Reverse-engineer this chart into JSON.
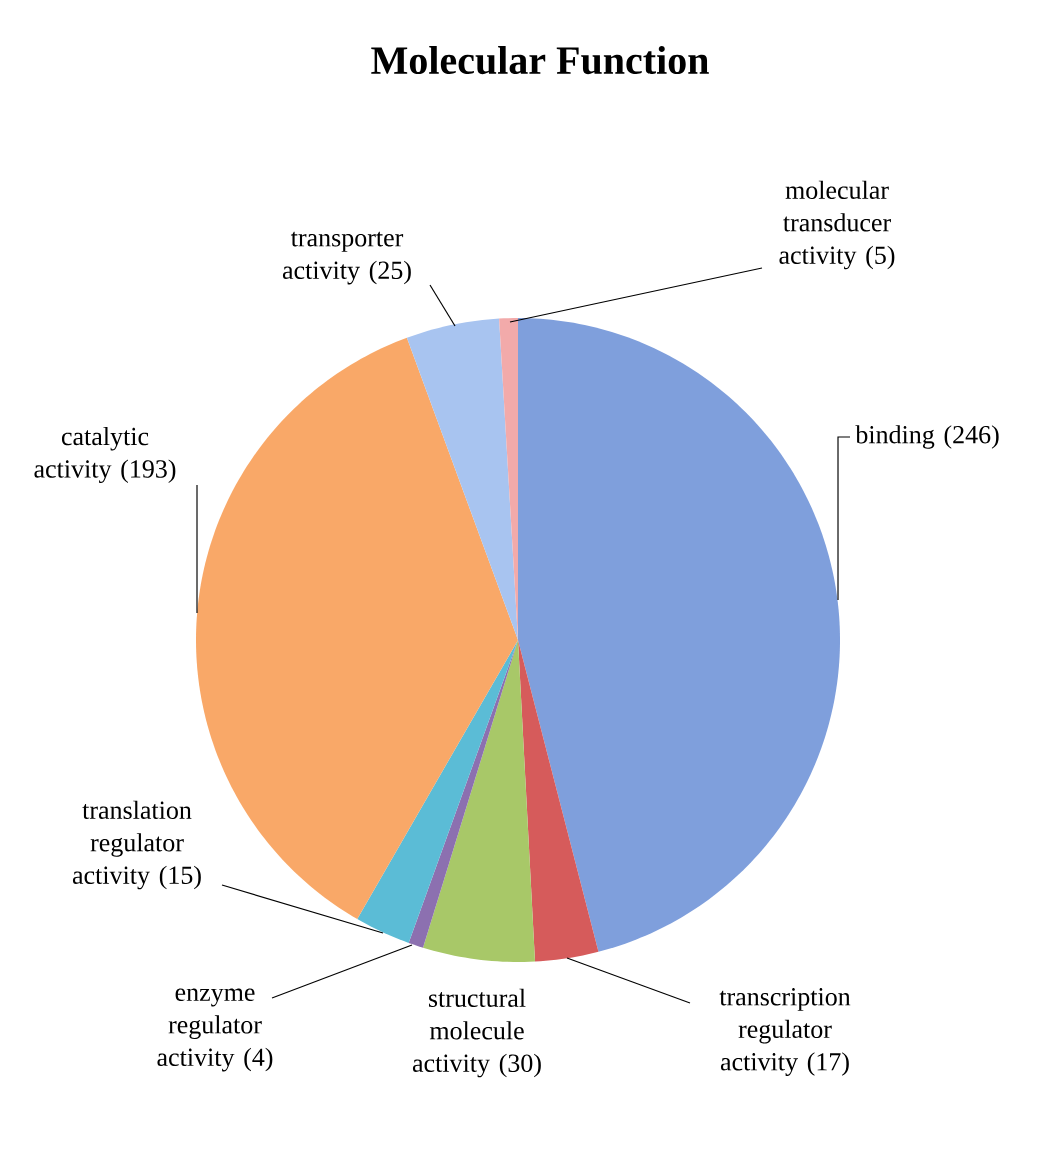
{
  "chart_data": {
    "type": "pie",
    "title": "Molecular Function",
    "categories": [
      "binding",
      "transcription regulator activity",
      "structural molecule activity",
      "enzyme regulator activity",
      "translation regulator activity",
      "catalytic activity",
      "transporter activity",
      "molecular transducer activity"
    ],
    "values": [
      246,
      17,
      30,
      4,
      15,
      193,
      25,
      5
    ],
    "colors": [
      "#7f9fdc",
      "#d65b5b",
      "#a8c868",
      "#8c70b0",
      "#5bbcd6",
      "#f9a868",
      "#a8c4f0",
      "#f2aaaa"
    ],
    "value_labels": [
      "(246)",
      "(17)",
      "(30)",
      "(4)",
      "(15)",
      "(193)",
      "(25)",
      "(5)"
    ]
  }
}
